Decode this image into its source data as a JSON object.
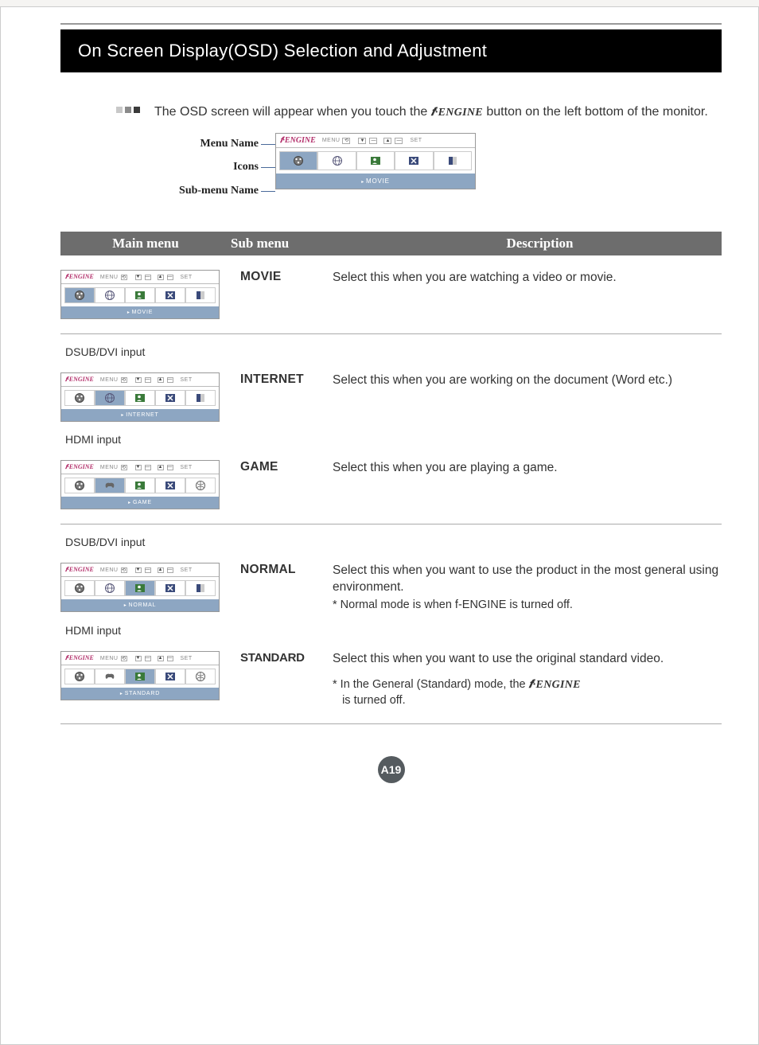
{
  "page": {
    "title": "On Screen Display(OSD) Selection and Adjustment",
    "intro_pre": "The OSD screen will appear when you touch the ",
    "intro_engine": "𝒇·ENGINE",
    "intro_post": " button on the left bottom of the monitor.",
    "page_number": "A19"
  },
  "colors": {
    "title_bg": "#000000",
    "title_fg": "#ffffff",
    "header_bg": "#6d6d6d",
    "osd_blue": "#8da6c2",
    "accent": "#b3306b",
    "bullet_light": "#c8c8c8",
    "bullet_mid": "#8a8a8a",
    "bullet_dark": "#3a3a3a"
  },
  "callouts": {
    "menu": "Menu Name",
    "icons": "Icons",
    "submenu": "Sub-menu Name"
  },
  "osd_ui": {
    "engine": "𝒇·ENGINE",
    "menu": "MENU",
    "set": "SET"
  },
  "table_headers": {
    "main": "Main menu",
    "sub": "Sub menu",
    "desc": "Description"
  },
  "input_labels": {
    "dsub": "DSUB/DVI input",
    "hdmi": "HDMI input"
  },
  "modes": [
    {
      "sub": "MOVIE",
      "osd_sub": "MOVIE",
      "active_index": 0,
      "icon_set": "std",
      "desc": "Select this when you are watching a video or movie."
    },
    {
      "sub": "INTERNET",
      "osd_sub": "INTERNET",
      "active_index": 1,
      "icon_set": "std",
      "input_label_key": "dsub",
      "desc": "Select this when you are working on the document (Word etc.)"
    },
    {
      "sub": "GAME",
      "osd_sub": "GAME",
      "active_index": 1,
      "icon_set": "hdmi",
      "input_label_key": "hdmi",
      "desc": "Select this when you are playing a game."
    },
    {
      "sub": "NORMAL",
      "osd_sub": "NORMAL",
      "active_index": 2,
      "icon_set": "std",
      "input_label_key": "dsub",
      "desc": "Select this when you want to use the product in the most general using environment.",
      "note": "* Normal mode is when f-ENGINE is turned off."
    },
    {
      "sub": "STANDARD",
      "osd_sub": "STANDARD",
      "active_index": 2,
      "icon_set": "hdmi",
      "input_label_key": "hdmi",
      "sub_wide": true,
      "desc": "Select this when you want to use the original standard video.",
      "note_pre": "* In the General (Standard) mode, the ",
      "note_engine": "𝒇·ENGINE",
      "note_post": " is turned off."
    }
  ]
}
